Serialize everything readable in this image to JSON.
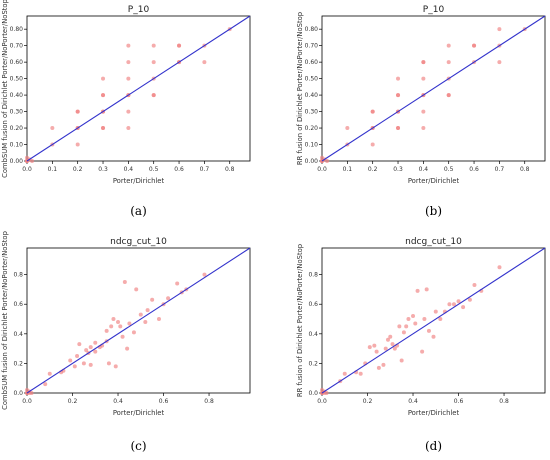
{
  "colors": {
    "points": "#f08080",
    "diagonal": "#3333cc",
    "axis": "#000000"
  },
  "chart_data": [
    {
      "type": "scatter",
      "caption": "(a)",
      "title": "P_10",
      "xlabel": "Porter/Dirichlet",
      "ylabel": "CombSUM fusion of Dirichlet Porter/NoPorter/NoStop",
      "xlim": [
        0,
        0.88
      ],
      "ylim": [
        0,
        0.88
      ],
      "xticks": [
        "0.0",
        "0.1",
        "0.2",
        "0.3",
        "0.4",
        "0.5",
        "0.6",
        "0.7",
        "0.8"
      ],
      "yticks": [
        "0.00",
        "0.10",
        "0.20",
        "0.30",
        "0.40",
        "0.50",
        "0.60",
        "0.70",
        "0.80"
      ],
      "diagonal": true,
      "grid": false,
      "points": [
        [
          0,
          0
        ],
        [
          0,
          0
        ],
        [
          0,
          0
        ],
        [
          0.01,
          0.01
        ],
        [
          0.02,
          0
        ],
        [
          0,
          0.02
        ],
        [
          0.1,
          0.1
        ],
        [
          0.1,
          0.2
        ],
        [
          0.2,
          0.1
        ],
        [
          0.2,
          0.2
        ],
        [
          0.2,
          0.2
        ],
        [
          0.2,
          0.3
        ],
        [
          0.2,
          0.3
        ],
        [
          0.3,
          0.2
        ],
        [
          0.3,
          0.2
        ],
        [
          0.3,
          0.3
        ],
        [
          0.3,
          0.3
        ],
        [
          0.3,
          0.4
        ],
        [
          0.3,
          0.4
        ],
        [
          0.3,
          0.5
        ],
        [
          0.4,
          0.2
        ],
        [
          0.4,
          0.3
        ],
        [
          0.4,
          0.4
        ],
        [
          0.4,
          0.4
        ],
        [
          0.4,
          0.5
        ],
        [
          0.4,
          0.6
        ],
        [
          0.4,
          0.7
        ],
        [
          0.5,
          0.4
        ],
        [
          0.5,
          0.4
        ],
        [
          0.5,
          0.5
        ],
        [
          0.5,
          0.6
        ],
        [
          0.5,
          0.7
        ],
        [
          0.6,
          0.6
        ],
        [
          0.6,
          0.6
        ],
        [
          0.6,
          0.7
        ],
        [
          0.6,
          0.7
        ],
        [
          0.7,
          0.6
        ],
        [
          0.7,
          0.7
        ],
        [
          0.8,
          0.8
        ]
      ]
    },
    {
      "type": "scatter",
      "caption": "(b)",
      "title": "P_10",
      "xlabel": "Porter/Dirichlet",
      "ylabel": "RR fusion of Dirichlet Porter/NoPorter/NoStop",
      "xlim": [
        0,
        0.88
      ],
      "ylim": [
        0,
        0.88
      ],
      "xticks": [
        "0.0",
        "0.1",
        "0.2",
        "0.3",
        "0.4",
        "0.5",
        "0.6",
        "0.7",
        "0.8"
      ],
      "yticks": [
        "0.00",
        "0.10",
        "0.20",
        "0.30",
        "0.40",
        "0.50",
        "0.60",
        "0.70",
        "0.80"
      ],
      "diagonal": true,
      "grid": false,
      "points": [
        [
          0,
          0
        ],
        [
          0,
          0
        ],
        [
          0,
          0
        ],
        [
          0.01,
          0.01
        ],
        [
          0.02,
          0
        ],
        [
          0,
          0.02
        ],
        [
          0.1,
          0.1
        ],
        [
          0.1,
          0.2
        ],
        [
          0.2,
          0.1
        ],
        [
          0.2,
          0.2
        ],
        [
          0.2,
          0.2
        ],
        [
          0.2,
          0.3
        ],
        [
          0.2,
          0.3
        ],
        [
          0.3,
          0.2
        ],
        [
          0.3,
          0.2
        ],
        [
          0.3,
          0.3
        ],
        [
          0.3,
          0.3
        ],
        [
          0.3,
          0.4
        ],
        [
          0.3,
          0.4
        ],
        [
          0.3,
          0.5
        ],
        [
          0.4,
          0.2
        ],
        [
          0.4,
          0.3
        ],
        [
          0.4,
          0.4
        ],
        [
          0.4,
          0.4
        ],
        [
          0.4,
          0.5
        ],
        [
          0.4,
          0.6
        ],
        [
          0.4,
          0.6
        ],
        [
          0.5,
          0.4
        ],
        [
          0.5,
          0.4
        ],
        [
          0.5,
          0.5
        ],
        [
          0.5,
          0.6
        ],
        [
          0.5,
          0.7
        ],
        [
          0.6,
          0.6
        ],
        [
          0.6,
          0.7
        ],
        [
          0.6,
          0.7
        ],
        [
          0.7,
          0.7
        ],
        [
          0.7,
          0.6
        ],
        [
          0.7,
          0.8
        ],
        [
          0.8,
          0.8
        ]
      ]
    },
    {
      "type": "scatter",
      "caption": "(c)",
      "title": "ndcg_cut_10",
      "xlabel": "Porter/Dirichlet",
      "ylabel": "CombSUM fusion of Dirichlet Porter/NoPorter/NoStop",
      "xlim": [
        0,
        0.98
      ],
      "ylim": [
        0,
        0.98
      ],
      "xticks": [
        "0.0",
        "0.2",
        "0.4",
        "0.6",
        "0.8"
      ],
      "yticks": [
        "0.0",
        "0.2",
        "0.4",
        "0.6",
        "0.8"
      ],
      "diagonal": true,
      "grid": false,
      "points": [
        [
          0,
          0
        ],
        [
          0,
          0
        ],
        [
          0.01,
          0.01
        ],
        [
          0.02,
          0
        ],
        [
          0,
          0.02
        ],
        [
          0.01,
          0
        ],
        [
          0.08,
          0.06
        ],
        [
          0.1,
          0.13
        ],
        [
          0.15,
          0.14
        ],
        [
          0.16,
          0.15
        ],
        [
          0.19,
          0.22
        ],
        [
          0.21,
          0.18
        ],
        [
          0.22,
          0.25
        ],
        [
          0.23,
          0.33
        ],
        [
          0.25,
          0.2
        ],
        [
          0.26,
          0.29
        ],
        [
          0.27,
          0.27
        ],
        [
          0.28,
          0.31
        ],
        [
          0.28,
          0.19
        ],
        [
          0.3,
          0.28
        ],
        [
          0.3,
          0.34
        ],
        [
          0.32,
          0.31
        ],
        [
          0.33,
          0.32
        ],
        [
          0.35,
          0.35
        ],
        [
          0.35,
          0.42
        ],
        [
          0.36,
          0.2
        ],
        [
          0.37,
          0.45
        ],
        [
          0.38,
          0.5
        ],
        [
          0.39,
          0.18
        ],
        [
          0.4,
          0.48
        ],
        [
          0.41,
          0.45
        ],
        [
          0.42,
          0.38
        ],
        [
          0.43,
          0.75
        ],
        [
          0.44,
          0.3
        ],
        [
          0.45,
          0.47
        ],
        [
          0.47,
          0.41
        ],
        [
          0.48,
          0.7
        ],
        [
          0.5,
          0.53
        ],
        [
          0.52,
          0.48
        ],
        [
          0.53,
          0.56
        ],
        [
          0.55,
          0.63
        ],
        [
          0.58,
          0.5
        ],
        [
          0.6,
          0.6
        ],
        [
          0.62,
          0.64
        ],
        [
          0.66,
          0.74
        ],
        [
          0.68,
          0.68
        ],
        [
          0.7,
          0.7
        ],
        [
          0.78,
          0.8
        ]
      ]
    },
    {
      "type": "scatter",
      "caption": "(d)",
      "title": "ndcg_cut_10",
      "xlabel": "Porter/Dirichlet",
      "ylabel": "RR fusion of Dirichlet Porter/NoPorter/NoStop",
      "xlim": [
        0,
        0.98
      ],
      "ylim": [
        0,
        0.98
      ],
      "xticks": [
        "0.0",
        "0.2",
        "0.4",
        "0.6",
        "0.8"
      ],
      "yticks": [
        "0.0",
        "0.2",
        "0.4",
        "0.6",
        "0.8"
      ],
      "diagonal": true,
      "grid": false,
      "points": [
        [
          0,
          0
        ],
        [
          0,
          0
        ],
        [
          0.01,
          0.01
        ],
        [
          0.02,
          0
        ],
        [
          0,
          0.02
        ],
        [
          0.01,
          0
        ],
        [
          0.08,
          0.08
        ],
        [
          0.1,
          0.13
        ],
        [
          0.15,
          0.14
        ],
        [
          0.17,
          0.13
        ],
        [
          0.19,
          0.2
        ],
        [
          0.21,
          0.31
        ],
        [
          0.23,
          0.32
        ],
        [
          0.24,
          0.28
        ],
        [
          0.25,
          0.17
        ],
        [
          0.27,
          0.19
        ],
        [
          0.28,
          0.3
        ],
        [
          0.29,
          0.36
        ],
        [
          0.3,
          0.38
        ],
        [
          0.31,
          0.33
        ],
        [
          0.32,
          0.3
        ],
        [
          0.33,
          0.32
        ],
        [
          0.34,
          0.45
        ],
        [
          0.35,
          0.22
        ],
        [
          0.36,
          0.41
        ],
        [
          0.37,
          0.45
        ],
        [
          0.38,
          0.5
        ],
        [
          0.4,
          0.52
        ],
        [
          0.41,
          0.47
        ],
        [
          0.42,
          0.69
        ],
        [
          0.44,
          0.28
        ],
        [
          0.45,
          0.5
        ],
        [
          0.46,
          0.7
        ],
        [
          0.47,
          0.42
        ],
        [
          0.49,
          0.38
        ],
        [
          0.5,
          0.55
        ],
        [
          0.52,
          0.5
        ],
        [
          0.54,
          0.55
        ],
        [
          0.56,
          0.6
        ],
        [
          0.58,
          0.6
        ],
        [
          0.6,
          0.62
        ],
        [
          0.62,
          0.58
        ],
        [
          0.65,
          0.63
        ],
        [
          0.67,
          0.73
        ],
        [
          0.7,
          0.69
        ],
        [
          0.78,
          0.85
        ]
      ]
    }
  ]
}
